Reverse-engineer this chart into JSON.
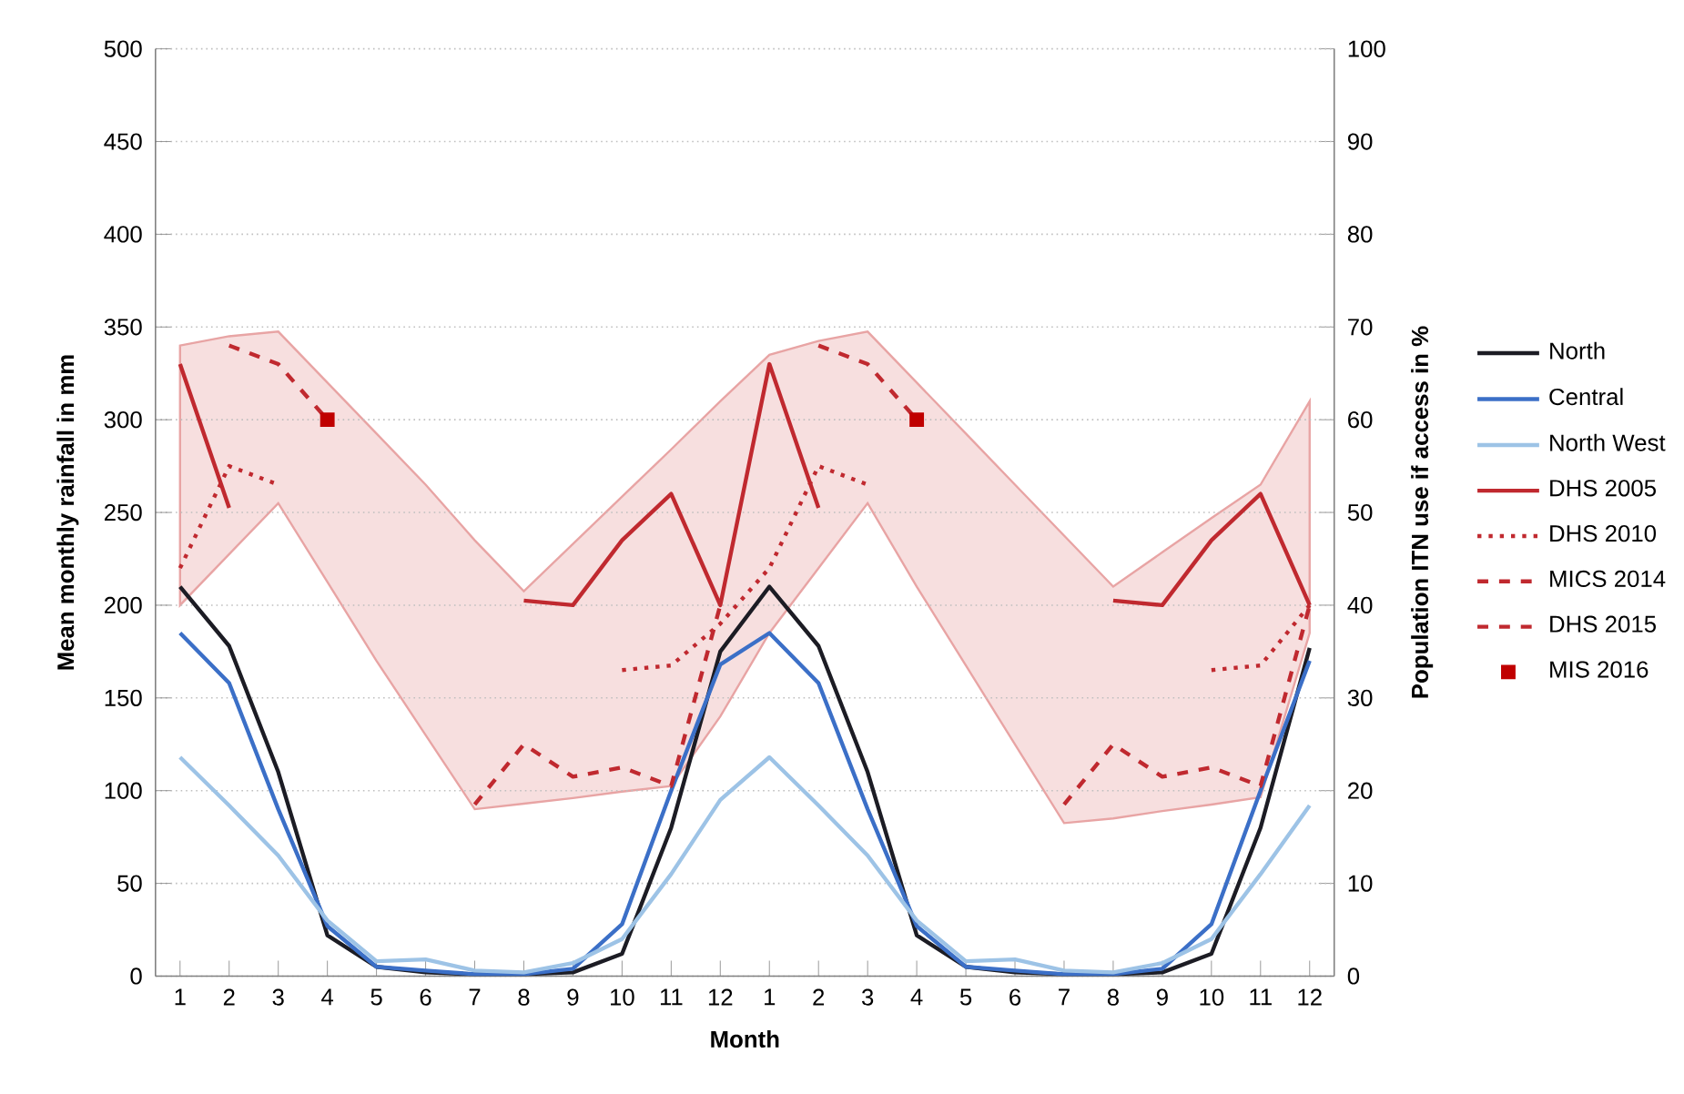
{
  "chart_data": {
    "type": "line",
    "xlabel": "Month",
    "ylabel": "Mean monthly rainfall in mm",
    "y2label": "Population ITN use if access in %",
    "categories": [
      "1",
      "2",
      "3",
      "4",
      "5",
      "6",
      "7",
      "8",
      "9",
      "10",
      "11",
      "12",
      "1",
      "2",
      "3",
      "4",
      "5",
      "6",
      "7",
      "8",
      "9",
      "10",
      "11",
      "12"
    ],
    "ylim": [
      0,
      500
    ],
    "yticks": [
      0,
      50,
      100,
      150,
      200,
      250,
      300,
      350,
      400,
      450,
      500
    ],
    "y2lim": [
      0,
      100
    ],
    "y2ticks": [
      0,
      10,
      20,
      30,
      40,
      50,
      60,
      70,
      80,
      90,
      100
    ],
    "grid": "y",
    "legend": "right",
    "marker": "none",
    "line_style": "solid",
    "series": [
      {
        "name": "North",
        "color": "#1c1c24",
        "values": [
          210,
          178,
          110,
          22,
          5,
          2,
          1,
          1,
          2,
          12,
          80,
          175,
          210,
          178,
          110,
          22,
          5,
          2,
          1,
          1,
          2,
          12,
          80,
          177
        ]
      },
      {
        "name": "Central",
        "color": "#3b6fc7",
        "values": [
          185,
          158,
          90,
          27,
          5,
          3,
          1,
          1,
          4,
          28,
          100,
          168,
          185,
          158,
          90,
          27,
          5,
          3,
          1,
          1,
          4,
          28,
          100,
          170
        ]
      },
      {
        "name": "North West",
        "color": "#9dc3e6",
        "values": [
          118,
          92,
          65,
          30,
          8,
          9,
          3,
          2,
          7,
          20,
          55,
          95,
          118,
          92,
          65,
          30,
          8,
          9,
          3,
          2,
          7,
          20,
          55,
          92
        ]
      },
      {
        "name": "DHS 2005",
        "color": "#c0292f",
        "axis": "y2",
        "values": [
          66,
          50.5,
          null,
          null,
          null,
          null,
          null,
          40.5,
          40,
          47,
          52,
          40,
          66,
          50.5,
          null,
          null,
          null,
          null,
          null,
          40.5,
          40,
          47,
          52,
          40
        ]
      },
      {
        "name": "DHS 2010",
        "color": "#c0292f",
        "axis": "y2",
        "line_style": "dotted",
        "values": [
          44,
          55,
          53,
          null,
          null,
          null,
          null,
          null,
          null,
          33,
          33.5,
          38,
          44,
          55,
          53,
          null,
          null,
          null,
          null,
          null,
          null,
          33,
          33.5,
          40
        ]
      },
      {
        "name": "MICS 2014",
        "color": "#c0292f",
        "axis": "y2",
        "line_style": "dashed",
        "values": [
          null,
          68,
          66,
          60,
          null,
          null,
          null,
          null,
          null,
          null,
          null,
          null,
          null,
          68,
          66,
          60,
          null,
          null,
          null,
          null,
          null,
          null,
          null,
          null
        ]
      },
      {
        "name": "DHS 2015",
        "color": "#c0292f",
        "axis": "y2",
        "line_style": "dashed",
        "values": [
          null,
          null,
          null,
          null,
          null,
          null,
          18.5,
          25,
          21.5,
          22.5,
          20.5,
          40,
          null,
          null,
          null,
          null,
          null,
          null,
          18.5,
          25,
          21.5,
          22.5,
          20.5,
          40
        ]
      },
      {
        "name": "MIS 2016",
        "type": "scatter",
        "marker": "square",
        "color": "#c00000",
        "axis": "y2",
        "values": [
          null,
          null,
          null,
          60,
          null,
          null,
          null,
          null,
          null,
          null,
          null,
          null,
          null,
          null,
          null,
          60,
          null,
          null,
          null,
          null,
          null,
          null,
          null,
          null
        ]
      },
      {
        "type": "area",
        "color": "#e8a4a4",
        "axis": "y2",
        "values": [
          null,
          null,
          null,
          null,
          null,
          null,
          null,
          null,
          null,
          null,
          null,
          null,
          null,
          null,
          null,
          null,
          null,
          null,
          null,
          null,
          null,
          null,
          null,
          null
        ],
        "upper": [
          68,
          69,
          69.5,
          64,
          58.5,
          53,
          47,
          41.5,
          46.6,
          51.7,
          56.8,
          62,
          67,
          68.5,
          69.5,
          64,
          58.5,
          53,
          47.5,
          42,
          45.7,
          49.4,
          53,
          62
        ],
        "lower": [
          40,
          45.5,
          51,
          42.5,
          34,
          26,
          18,
          18.6,
          19.2,
          19.9,
          20.5,
          28,
          37,
          44,
          51,
          42,
          33.5,
          25,
          16.5,
          17,
          17.8,
          18.5,
          19.3,
          37
        ]
      }
    ]
  }
}
